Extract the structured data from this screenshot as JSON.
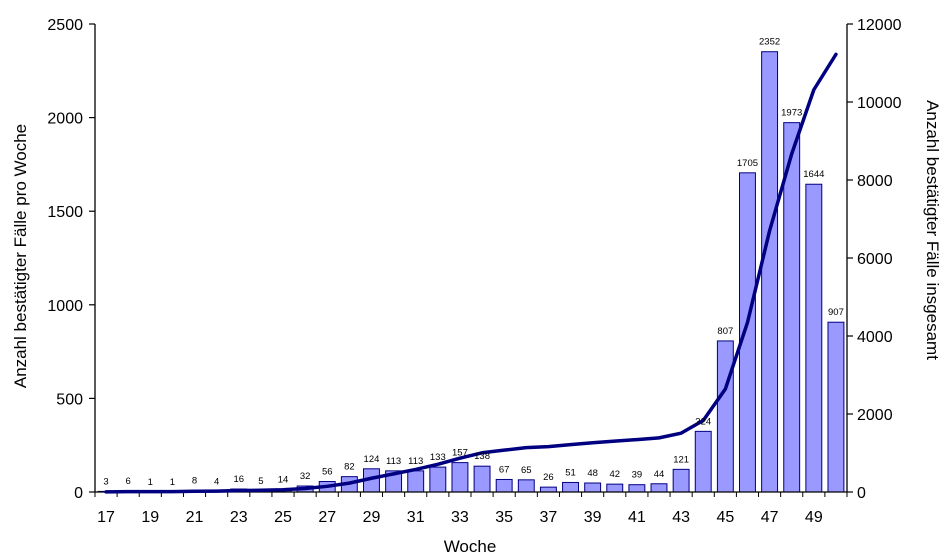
{
  "chart_data": {
    "type": "bar",
    "xlabel": "Woche",
    "ylabel": "Anzahl bestätigter Fälle pro Woche",
    "y2label": "Anzahl bestätigter Fälle insgesamt",
    "ylim": [
      0,
      2500
    ],
    "y2lim": [
      0,
      12000
    ],
    "yticks": [
      "0",
      "500",
      "1000",
      "1500",
      "2000",
      "2500"
    ],
    "y2ticks": [
      "0",
      "2000",
      "4000",
      "6000",
      "8000",
      "10000",
      "12000"
    ],
    "xticks": [
      "17",
      "19",
      "21",
      "23",
      "25",
      "27",
      "29",
      "31",
      "33",
      "35",
      "37",
      "39",
      "41",
      "43",
      "45",
      "47",
      "49"
    ],
    "categories": [
      "17",
      "18",
      "19",
      "20",
      "21",
      "22",
      "23",
      "24",
      "25",
      "26",
      "27",
      "28",
      "29",
      "30",
      "31",
      "32",
      "33",
      "34",
      "35",
      "36",
      "37",
      "38",
      "39",
      "40",
      "41",
      "42",
      "43",
      "44",
      "45",
      "46",
      "47",
      "48",
      "49",
      "50"
    ],
    "series": [
      {
        "type": "bar",
        "axis": "left",
        "color": "#9999ff",
        "values": [
          3,
          6,
          1,
          1,
          8,
          4,
          16,
          5,
          14,
          32,
          56,
          82,
          124,
          113,
          113,
          133,
          157,
          138,
          67,
          65,
          26,
          51,
          48,
          42,
          39,
          44,
          121,
          324,
          807,
          1705,
          2352,
          1973,
          1644,
          907
        ]
      },
      {
        "type": "line",
        "axis": "right",
        "color": "#000080",
        "values": [
          3,
          9,
          10,
          11,
          19,
          23,
          39,
          44,
          58,
          90,
          146,
          228,
          352,
          465,
          578,
          711,
          868,
          1006,
          1073,
          1138,
          1164,
          1215,
          1263,
          1305,
          1344,
          1388,
          1509,
          1833,
          2640,
          4345,
          6697,
          8670,
          10314,
          11221
        ]
      }
    ],
    "data_labels": [
      "3",
      "6",
      "1",
      "1",
      "8",
      "4",
      "16",
      "5",
      "14",
      "32",
      "56",
      "82",
      "124",
      "113",
      "113",
      "133",
      "157",
      "138",
      "67",
      "65",
      "26",
      "51",
      "48",
      "42",
      "39",
      "44",
      "121",
      "324",
      "807",
      "1705",
      "2352",
      "1973",
      "1644",
      "907"
    ]
  }
}
